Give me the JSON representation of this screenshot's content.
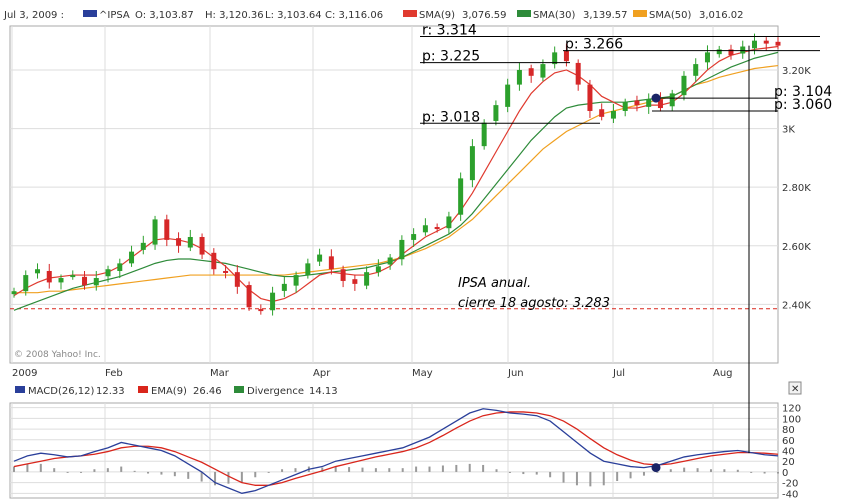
{
  "header": {
    "date_label": "Jul 3, 2009 :",
    "symbol": "^IPSA",
    "open": "O: 3,103.87",
    "high": "H: 3,120.36",
    "low": "L: 3,103.64",
    "close": "C: 3,116.06",
    "sma9": "SMA(9)",
    "sma9_value": "3,076.59",
    "sma30": "SMA(30)",
    "sma30_value": "3,139.57",
    "sma50": "SMA(50)",
    "sma50_value": "3,016.02"
  },
  "colors": {
    "candle_up": "#2ca02c",
    "candle_down": "#d62728",
    "sma9": "#e03a2f",
    "sma30": "#2e8b3a",
    "sma50": "#f0a020",
    "macd": "#2a3f9a",
    "ema": "#d9261c",
    "divergence": "#999999",
    "grid": "#dddddd",
    "axis_border": "#aaaaaa"
  },
  "chart_data": [
    {
      "type": "candlestick",
      "x_ticks": [
        "2009",
        "Feb",
        "Mar",
        "Apr",
        "May",
        "Jun",
        "Jul",
        "Aug"
      ],
      "y_ticks": [
        "2.40K",
        "2.60K",
        "2.80K",
        "3K",
        "3.20K"
      ],
      "ylim": [
        2200,
        3350
      ],
      "reference_line": 2385,
      "grid": true,
      "copyright": "© 2008 Yahoo! Inc.",
      "annotations": [
        {
          "text": "r: 3.314",
          "value": 3314
        },
        {
          "text": "p: 3.266",
          "value": 3266
        },
        {
          "text": "p: 3.225",
          "value": 3225
        },
        {
          "text": "p: 3.104",
          "value": 3104
        },
        {
          "text": "p: 3.060",
          "value": 3060
        },
        {
          "text": "p: 3.018",
          "value": 3018
        }
      ],
      "note_lines": [
        "IPSA anual.",
        "cierre 18 agosto: 3.283"
      ],
      "close_path": [
        2445,
        2500,
        2520,
        2475,
        2490,
        2500,
        2465,
        2490,
        2520,
        2540,
        2580,
        2610,
        2690,
        2620,
        2600,
        2630,
        2570,
        2520,
        2510,
        2460,
        2390,
        2380,
        2440,
        2470,
        2500,
        2540,
        2570,
        2520,
        2480,
        2470,
        2510,
        2530,
        2560,
        2620,
        2640,
        2670,
        2660,
        2700,
        2830,
        2940,
        3020,
        3080,
        3150,
        3200,
        3180,
        3220,
        3260,
        3230,
        3150,
        3060,
        3040,
        3060,
        3090,
        3080,
        3100,
        3070,
        3120,
        3180,
        3220,
        3260,
        3270,
        3250,
        3280,
        3300,
        3290,
        3283
      ],
      "sma9": [
        2430,
        2455,
        2475,
        2490,
        2495,
        2500,
        2500,
        2500,
        2510,
        2530,
        2560,
        2590,
        2620,
        2625,
        2620,
        2610,
        2590,
        2560,
        2530,
        2490,
        2450,
        2420,
        2410,
        2420,
        2440,
        2470,
        2500,
        2510,
        2505,
        2500,
        2500,
        2510,
        2530,
        2570,
        2600,
        2630,
        2650,
        2670,
        2720,
        2780,
        2850,
        2920,
        2990,
        3060,
        3120,
        3160,
        3190,
        3200,
        3180,
        3150,
        3110,
        3090,
        3070,
        3070,
        3080,
        3080,
        3090,
        3120,
        3160,
        3200,
        3230,
        3250,
        3260,
        3270,
        3275,
        3280
      ],
      "sma30": [
        2380,
        2395,
        2410,
        2425,
        2440,
        2455,
        2465,
        2475,
        2485,
        2495,
        2510,
        2525,
        2540,
        2550,
        2555,
        2555,
        2550,
        2545,
        2540,
        2530,
        2520,
        2510,
        2500,
        2495,
        2495,
        2500,
        2505,
        2510,
        2515,
        2520,
        2525,
        2535,
        2545,
        2560,
        2580,
        2600,
        2620,
        2640,
        2670,
        2710,
        2760,
        2810,
        2860,
        2910,
        2960,
        3000,
        3040,
        3070,
        3080,
        3085,
        3090,
        3090,
        3090,
        3095,
        3100,
        3105,
        3110,
        3130,
        3150,
        3170,
        3190,
        3210,
        3225,
        3240,
        3250,
        3260
      ],
      "sma50": [
        2440,
        2440,
        2440,
        2445,
        2445,
        2450,
        2455,
        2460,
        2465,
        2470,
        2475,
        2480,
        2485,
        2490,
        2495,
        2500,
        2500,
        2500,
        2500,
        2500,
        2500,
        2500,
        2500,
        2500,
        2505,
        2510,
        2515,
        2520,
        2525,
        2530,
        2535,
        2540,
        2550,
        2560,
        2575,
        2590,
        2610,
        2630,
        2660,
        2690,
        2730,
        2770,
        2810,
        2850,
        2890,
        2930,
        2960,
        2990,
        3010,
        3030,
        3050,
        3060,
        3070,
        3080,
        3090,
        3100,
        3110,
        3130,
        3150,
        3160,
        3175,
        3185,
        3195,
        3205,
        3210,
        3215
      ]
    },
    {
      "type": "line",
      "title": "MACD(26,12)",
      "title_value": "12.33",
      "series": [
        {
          "name": "MACD(26,12)",
          "value_label": "12.33"
        },
        {
          "name": "EMA(9)",
          "value_label": "26.46"
        },
        {
          "name": "Divergence",
          "value_label": "14.13"
        }
      ],
      "y_ticks": [
        "120",
        "100",
        "80",
        "60",
        "40",
        "20",
        "0",
        "-20",
        "-40"
      ],
      "ylim": [
        -45,
        125
      ],
      "macd": [
        20,
        30,
        35,
        32,
        28,
        30,
        38,
        45,
        55,
        50,
        45,
        40,
        30,
        15,
        0,
        -20,
        -30,
        -40,
        -35,
        -25,
        -15,
        -5,
        5,
        10,
        20,
        25,
        30,
        35,
        40,
        45,
        55,
        65,
        80,
        95,
        110,
        118,
        115,
        110,
        108,
        105,
        95,
        75,
        55,
        35,
        20,
        15,
        10,
        8,
        12,
        20,
        28,
        32,
        35,
        38,
        40,
        36,
        32,
        30
      ],
      "ema": [
        10,
        15,
        20,
        25,
        28,
        30,
        33,
        38,
        45,
        48,
        48,
        45,
        38,
        28,
        18,
        5,
        -8,
        -20,
        -25,
        -25,
        -20,
        -12,
        -5,
        2,
        10,
        16,
        22,
        28,
        33,
        38,
        45,
        55,
        68,
        82,
        95,
        105,
        110,
        112,
        112,
        110,
        105,
        95,
        80,
        62,
        45,
        32,
        22,
        15,
        13,
        15,
        20,
        25,
        30,
        33,
        36,
        36,
        35,
        33
      ],
      "highlight_point_index": 50,
      "close_button": "✕"
    }
  ]
}
